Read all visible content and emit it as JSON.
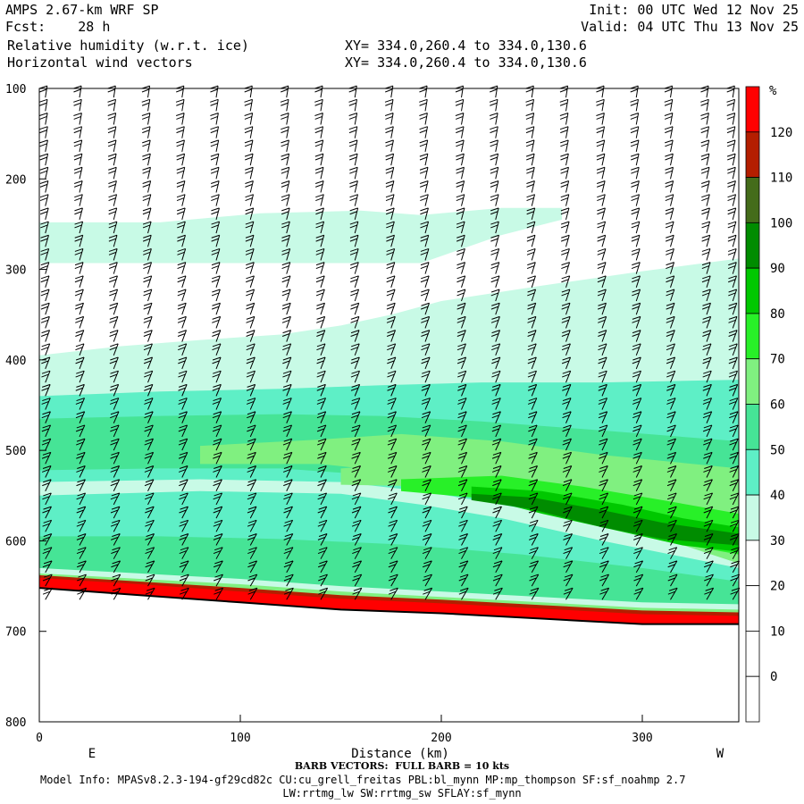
{
  "header": {
    "model": "AMPS 2.67-km WRF SP",
    "forecast": "Fcst:    28 h",
    "field1": "Relative humidity (w.r.t. ice)",
    "field2": "Horizontal wind vectors",
    "init": "Init: 00 UTC Wed 12 Nov 25",
    "valid": "Valid: 04 UTC Thu 13 Nov 25",
    "xy1": "XY= 334.0,260.4 to 334.0,130.6",
    "xy2": "XY= 334.0,260.4 to 334.0,130.6"
  },
  "footer": {
    "barb": "BARB VECTORS:  FULL BARB = 10 kts",
    "model_info": "Model Info: MPASv8.2.3-194-gf29cd82c CU:cu_grell_freitas PBL:bl_mynn MP:mp_thompson SF:sf_noahmp 2.7",
    "model_info2": "LW:rrtmg_lw SW:rrtmg_sw SFLAY:sf_mynn"
  },
  "chart_data": {
    "type": "heatmap",
    "xlabel": "Distance (km)",
    "x_ends": [
      "E",
      "W"
    ],
    "xlim": [
      0,
      348
    ],
    "xticks": [
      0,
      100,
      200,
      300
    ],
    "ylim": [
      100,
      800
    ],
    "y_inverted": true,
    "yticks": [
      100,
      200,
      300,
      400,
      500,
      600,
      700,
      800
    ],
    "colorbar": {
      "unit": "%",
      "levels": [
        0,
        10,
        20,
        30,
        40,
        50,
        60,
        70,
        80,
        90,
        100,
        110,
        120
      ],
      "colors": [
        "#ffffff",
        "#ffffff",
        "#ffffff",
        "#ffffff",
        "#c8fae6",
        "#5eefc6",
        "#46e496",
        "#80f080",
        "#28f028",
        "#00c800",
        "#008c00",
        "#446c1a",
        "#b41e00",
        "#ff0000"
      ]
    },
    "terrain_surface": [
      [
        0,
        652
      ],
      [
        50,
        660
      ],
      [
        100,
        668
      ],
      [
        150,
        676
      ],
      [
        200,
        680
      ],
      [
        250,
        686
      ],
      [
        300,
        692
      ],
      [
        348,
        692
      ]
    ],
    "rh_bands": [
      {
        "level": 30,
        "top": [
          [
            0,
            248
          ],
          [
            60,
            248
          ],
          [
            110,
            238
          ],
          [
            160,
            235
          ],
          [
            190,
            240
          ],
          [
            230,
            232
          ],
          [
            260,
            232
          ]
        ],
        "bottom": [
          [
            0,
            293
          ],
          [
            60,
            293
          ],
          [
            110,
            293
          ],
          [
            160,
            293
          ],
          [
            190,
            293
          ],
          [
            230,
            262
          ],
          [
            260,
            245
          ]
        ]
      },
      {
        "level": 30,
        "top": [
          [
            0,
            395
          ],
          [
            40,
            385
          ],
          [
            80,
            378
          ],
          [
            120,
            372
          ],
          [
            150,
            362
          ],
          [
            175,
            350
          ],
          [
            200,
            335
          ],
          [
            250,
            318
          ],
          [
            300,
            302
          ],
          [
            348,
            288
          ]
        ],
        "bottom": [
          [
            0,
            650
          ],
          [
            50,
            658
          ],
          [
            100,
            666
          ],
          [
            150,
            672
          ],
          [
            200,
            678
          ],
          [
            250,
            684
          ],
          [
            300,
            690
          ],
          [
            348,
            690
          ]
        ]
      },
      {
        "level": 40,
        "top": [
          [
            0,
            440
          ],
          [
            60,
            435
          ],
          [
            120,
            432
          ],
          [
            170,
            428
          ],
          [
            220,
            425
          ],
          [
            280,
            425
          ],
          [
            348,
            422
          ]
        ],
        "bottom": [
          [
            0,
            535
          ],
          [
            80,
            532
          ],
          [
            150,
            535
          ],
          [
            190,
            545
          ],
          [
            230,
            560
          ],
          [
            280,
            580
          ],
          [
            348,
            610
          ]
        ]
      },
      {
        "level": 40,
        "top": [
          [
            0,
            550
          ],
          [
            80,
            545
          ],
          [
            150,
            548
          ],
          [
            190,
            560
          ],
          [
            230,
            575
          ],
          [
            280,
            600
          ],
          [
            348,
            630
          ]
        ],
        "bottom": [
          [
            0,
            648
          ],
          [
            50,
            656
          ],
          [
            100,
            664
          ],
          [
            150,
            670
          ],
          [
            200,
            676
          ],
          [
            250,
            682
          ],
          [
            300,
            688
          ],
          [
            348,
            688
          ]
        ]
      },
      {
        "level": 50,
        "top": [
          [
            0,
            465
          ],
          [
            60,
            462
          ],
          [
            120,
            460
          ],
          [
            170,
            462
          ],
          [
            220,
            468
          ],
          [
            280,
            478
          ],
          [
            348,
            490
          ]
        ],
        "bottom": [
          [
            0,
            522
          ],
          [
            60,
            520
          ],
          [
            120,
            520
          ],
          [
            170,
            528
          ],
          [
            220,
            545
          ],
          [
            280,
            568
          ],
          [
            348,
            600
          ]
        ]
      },
      {
        "level": 50,
        "top": [
          [
            0,
            595
          ],
          [
            60,
            595
          ],
          [
            120,
            598
          ],
          [
            180,
            604
          ],
          [
            240,
            615
          ],
          [
            300,
            630
          ],
          [
            348,
            645
          ]
        ],
        "bottom": [
          [
            0,
            640
          ],
          [
            50,
            650
          ],
          [
            100,
            658
          ],
          [
            150,
            666
          ],
          [
            200,
            672
          ],
          [
            250,
            678
          ],
          [
            300,
            684
          ],
          [
            348,
            686
          ]
        ]
      },
      {
        "level": 60,
        "top": [
          [
            80,
            495
          ],
          [
            140,
            488
          ],
          [
            180,
            482
          ],
          [
            230,
            490
          ],
          [
            280,
            505
          ],
          [
            348,
            520
          ]
        ],
        "bottom": [
          [
            80,
            515
          ],
          [
            140,
            515
          ],
          [
            180,
            525
          ],
          [
            230,
            548
          ],
          [
            280,
            572
          ],
          [
            348,
            600
          ]
        ]
      },
      {
        "level": 60,
        "top": [
          [
            150,
            520
          ],
          [
            200,
            512
          ],
          [
            250,
            520
          ],
          [
            300,
            540
          ],
          [
            348,
            560
          ]
        ],
        "bottom": [
          [
            150,
            538
          ],
          [
            200,
            540
          ],
          [
            250,
            560
          ],
          [
            300,
            590
          ],
          [
            348,
            625
          ]
        ]
      },
      {
        "level": 70,
        "top": [
          [
            180,
            532
          ],
          [
            230,
            528
          ],
          [
            270,
            540
          ],
          [
            310,
            555
          ],
          [
            348,
            570
          ]
        ],
        "bottom": [
          [
            180,
            545
          ],
          [
            230,
            555
          ],
          [
            270,
            578
          ],
          [
            310,
            600
          ],
          [
            348,
            615
          ]
        ]
      },
      {
        "level": 80,
        "top": [
          [
            215,
            540
          ],
          [
            250,
            545
          ],
          [
            290,
            560
          ],
          [
            320,
            575
          ],
          [
            348,
            585
          ]
        ],
        "bottom": [
          [
            215,
            550
          ],
          [
            250,
            570
          ],
          [
            290,
            590
          ],
          [
            320,
            605
          ],
          [
            348,
            612
          ]
        ]
      },
      {
        "level": 90,
        "top": [
          [
            215,
            548
          ],
          [
            245,
            552
          ],
          [
            280,
            566
          ],
          [
            310,
            580
          ],
          [
            348,
            592
          ]
        ],
        "bottom": [
          [
            215,
            555
          ],
          [
            245,
            565
          ],
          [
            280,
            585
          ],
          [
            310,
            598
          ],
          [
            348,
            605
          ]
        ]
      },
      {
        "level": 30,
        "top": [
          [
            0,
            630
          ],
          [
            50,
            636
          ],
          [
            100,
            642
          ],
          [
            150,
            650
          ],
          [
            200,
            656
          ],
          [
            250,
            662
          ],
          [
            300,
            668
          ],
          [
            348,
            670
          ]
        ],
        "bottom": [
          [
            0,
            652
          ],
          [
            50,
            660
          ],
          [
            100,
            668
          ],
          [
            150,
            676
          ],
          [
            200,
            680
          ],
          [
            250,
            686
          ],
          [
            300,
            692
          ],
          [
            348,
            692
          ]
        ]
      },
      {
        "level": 60,
        "top": [
          [
            0,
            636
          ],
          [
            50,
            642
          ],
          [
            100,
            648
          ],
          [
            150,
            656
          ],
          [
            200,
            662
          ],
          [
            250,
            668
          ],
          [
            300,
            674
          ],
          [
            348,
            676
          ]
        ],
        "bottom": [
          [
            0,
            652
          ],
          [
            50,
            660
          ],
          [
            100,
            668
          ],
          [
            150,
            676
          ],
          [
            200,
            680
          ],
          [
            250,
            686
          ],
          [
            300,
            692
          ],
          [
            348,
            692
          ]
        ]
      },
      {
        "level": 110,
        "top": [
          [
            0,
            638
          ],
          [
            50,
            645
          ],
          [
            100,
            652
          ],
          [
            150,
            660
          ],
          [
            200,
            665
          ],
          [
            250,
            671
          ],
          [
            300,
            677
          ],
          [
            348,
            679
          ]
        ],
        "bottom": [
          [
            0,
            652
          ],
          [
            50,
            660
          ],
          [
            100,
            668
          ],
          [
            150,
            676
          ],
          [
            200,
            680
          ],
          [
            250,
            686
          ],
          [
            300,
            692
          ],
          [
            348,
            692
          ]
        ]
      },
      {
        "level": 120,
        "top": [
          [
            0,
            641
          ],
          [
            50,
            648
          ],
          [
            100,
            656
          ],
          [
            150,
            664
          ],
          [
            200,
            669
          ],
          [
            250,
            675
          ],
          [
            300,
            681
          ],
          [
            348,
            683
          ]
        ],
        "bottom": [
          [
            0,
            652
          ],
          [
            50,
            660
          ],
          [
            100,
            668
          ],
          [
            150,
            676
          ],
          [
            200,
            680
          ],
          [
            250,
            686
          ],
          [
            300,
            692
          ],
          [
            348,
            692
          ]
        ]
      }
    ],
    "wind_columns_km": [
      3,
      20,
      37,
      54,
      71,
      88,
      105,
      123,
      140,
      157,
      175,
      192,
      210,
      227,
      245,
      262,
      280,
      297,
      314,
      332,
      345
    ],
    "wind_levels_hpa": [
      110,
      125,
      140,
      155,
      170,
      185,
      200,
      215,
      230,
      245,
      260,
      275,
      290,
      305,
      320,
      335,
      350,
      365,
      380,
      395,
      410,
      425,
      440,
      455,
      470,
      485,
      500,
      515,
      530,
      545,
      560,
      575,
      590,
      605,
      620,
      635,
      650,
      665
    ]
  }
}
